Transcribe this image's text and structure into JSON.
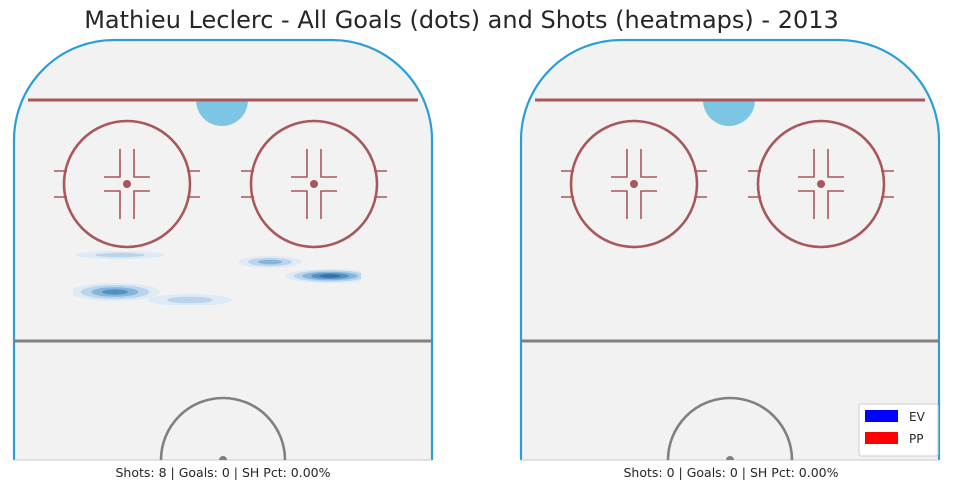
{
  "title": "Mathieu Leclerc - All Goals (dots) and Shots (heatmaps) - 2013",
  "colors": {
    "ice": "#f2f2f2",
    "boards": "#2a9fd6",
    "red_line": "#a8575a",
    "blue_line": "#808080",
    "crease": "#7cc6e4",
    "heat": [
      "#dce9f5",
      "#b5d2ea",
      "#7fb3d8",
      "#4a8cc0",
      "#2c6ea3"
    ]
  },
  "chart_data": [
    {
      "type": "heatmap",
      "panel": "left",
      "caption": "Shots: 8 | Goals: 0 | SH Pct: 0.00%",
      "shots": 8,
      "goals": 0,
      "sh_pct": "0.00%",
      "blobs": [
        {
          "cx": 120,
          "cy": 255,
          "rx": 45,
          "ry": 4,
          "level": 1
        },
        {
          "cx": 115,
          "cy": 292,
          "rx": 45,
          "ry": 9,
          "level": 3
        },
        {
          "cx": 190,
          "cy": 300,
          "rx": 42,
          "ry": 6,
          "level": 1
        },
        {
          "cx": 270,
          "cy": 262,
          "rx": 32,
          "ry": 6,
          "level": 2
        },
        {
          "cx": 330,
          "cy": 276,
          "rx": 45,
          "ry": 7,
          "level": 4
        }
      ],
      "heat_clip": [
        73,
        240,
        361,
        305
      ]
    },
    {
      "type": "heatmap",
      "panel": "right",
      "caption": "Shots: 0 | Goals: 0 | SH Pct: 0.00%",
      "shots": 0,
      "goals": 0,
      "sh_pct": "0.00%",
      "blobs": []
    }
  ],
  "legend": [
    {
      "label": "EV",
      "color": "#0000ff"
    },
    {
      "label": "PP",
      "color": "#ff0000"
    }
  ]
}
